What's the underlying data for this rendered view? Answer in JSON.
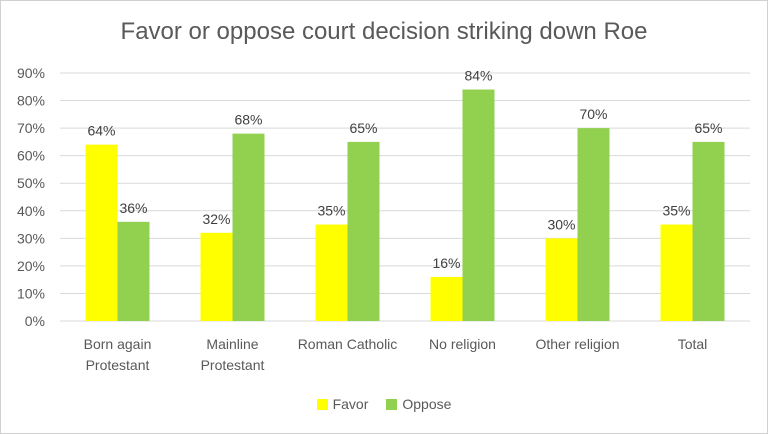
{
  "chart_data": {
    "type": "bar",
    "title": "Favor or oppose court decision striking down Roe",
    "categories": [
      [
        "Born again",
        "Protestant"
      ],
      [
        "Mainline",
        "Protestant"
      ],
      [
        "Roman Catholic"
      ],
      [
        "No religion"
      ],
      [
        "Other religion"
      ],
      [
        "Total"
      ]
    ],
    "series": [
      {
        "name": "Favor",
        "color": "#ffff00",
        "values": [
          64,
          32,
          35,
          16,
          30,
          35
        ],
        "labels": [
          "64%",
          "32%",
          "35%",
          "16%",
          "30%",
          "35%"
        ]
      },
      {
        "name": "Oppose",
        "color": "#92d050",
        "values": [
          36,
          68,
          65,
          84,
          70,
          65
        ],
        "labels": [
          "36%",
          "68%",
          "65%",
          "84%",
          "70%",
          "65%"
        ]
      }
    ],
    "ylim": [
      0,
      90
    ],
    "yticks": [
      "0%",
      "10%",
      "20%",
      "30%",
      "40%",
      "50%",
      "60%",
      "70%",
      "80%",
      "90%"
    ],
    "grid": true,
    "legend_position": "bottom"
  }
}
